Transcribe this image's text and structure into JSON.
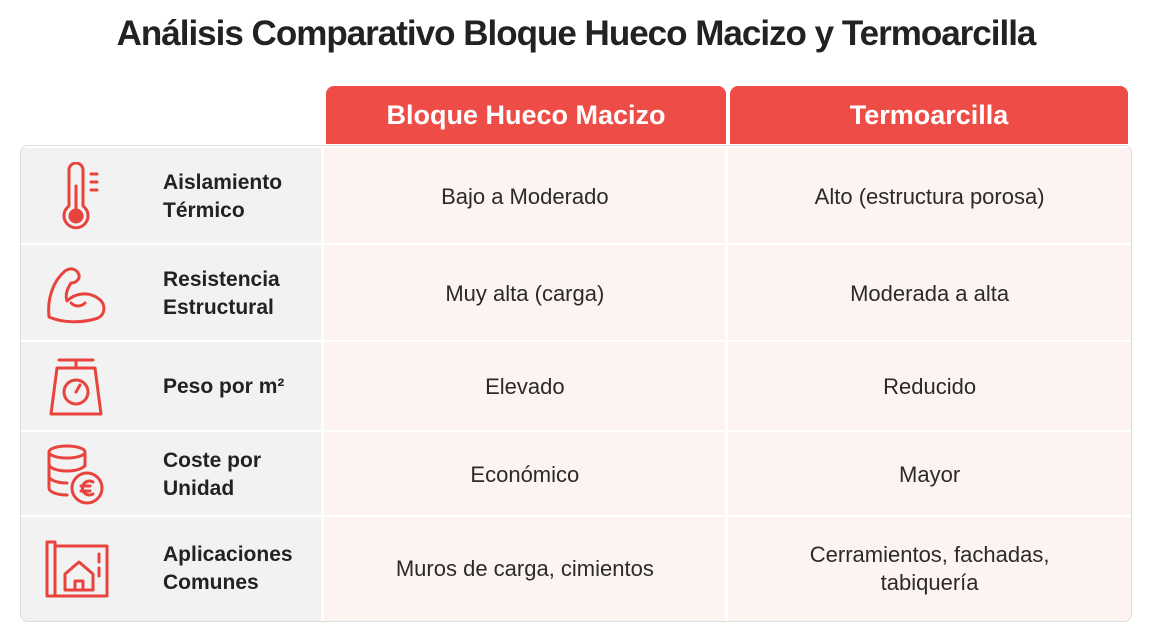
{
  "title": "Análisis Comparativo Bloque Hueco Macizo y Termoarcilla",
  "table": {
    "headers": [
      "Bloque Hueco Macizo",
      "Termoarcilla"
    ],
    "rows": [
      {
        "label": "Aislamiento Térmico",
        "cells": [
          "Bajo a Moderado",
          "Alto (estructura porosa)"
        ]
      },
      {
        "label": "Resistencia Estructural",
        "cells": [
          "Muy alta (carga)",
          "Moderada a alta"
        ]
      },
      {
        "label": "Peso por m²",
        "cells": [
          "Elevado",
          "Reducido"
        ]
      },
      {
        "label": "Coste por Unidad",
        "cells": [
          "Económico",
          "Mayor"
        ]
      },
      {
        "label": "Aplicaciones Comunes",
        "cells": [
          "Muros de carga, cimientos",
          "Cerramientos, fachadas, tabiquería"
        ]
      }
    ]
  }
}
